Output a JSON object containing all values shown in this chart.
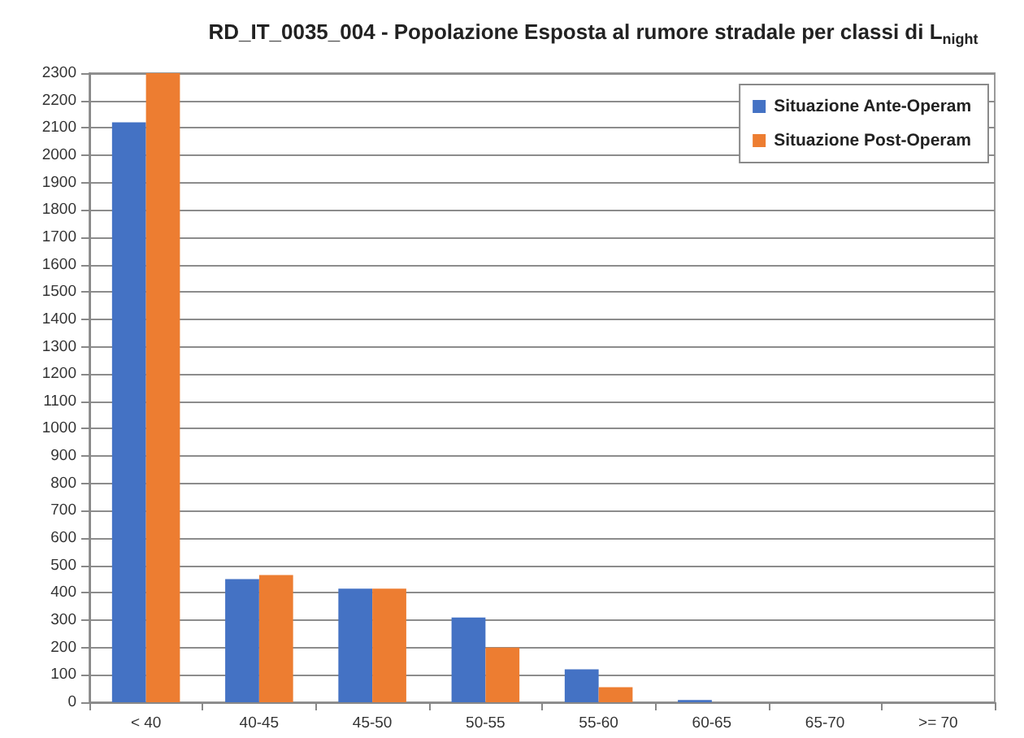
{
  "chart_data": {
    "type": "bar",
    "title": "RD_IT_0035_004 - Popolazione Esposta al rumore stradale per classi di L$_{night}$",
    "categories": [
      "< 40",
      "40-45",
      "45-50",
      "50-55",
      "55-60",
      "60-65",
      "65-70",
      ">= 70"
    ],
    "series": [
      {
        "name": "Situazione Ante-Operam",
        "color": "#4472c4",
        "values": [
          2120,
          450,
          415,
          310,
          120,
          8,
          0,
          0
        ]
      },
      {
        "name": "Situazione Post-Operam",
        "color": "#ed7d31",
        "values": [
          2300,
          465,
          415,
          200,
          55,
          0,
          0,
          0
        ]
      }
    ],
    "ylim": [
      0,
      2300
    ],
    "yticks": [
      0,
      100,
      200,
      300,
      400,
      500,
      600,
      700,
      800,
      900,
      1000,
      1100,
      1200,
      1300,
      1400,
      1500,
      1600,
      1700,
      1800,
      1900,
      2000,
      2100,
      2200,
      2300
    ],
    "grid": "y",
    "legend": "top right"
  }
}
